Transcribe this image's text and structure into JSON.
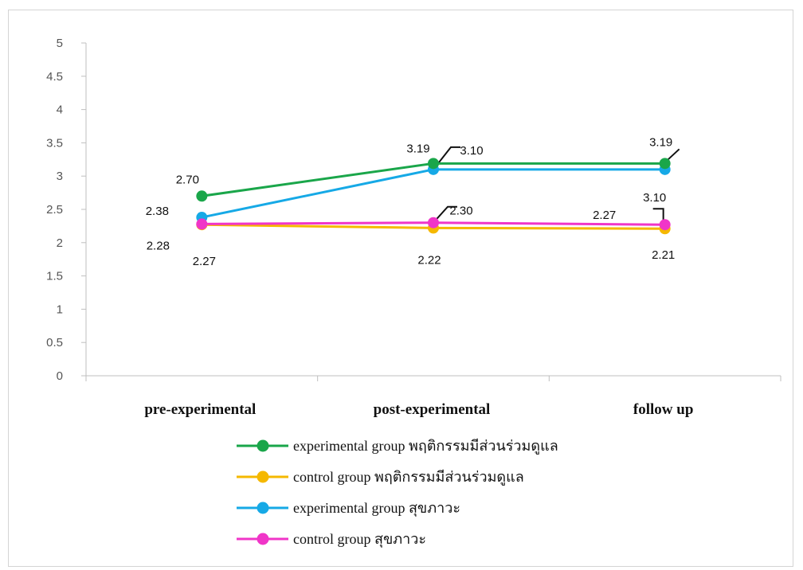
{
  "chart_data": {
    "type": "line",
    "categories": [
      "pre-experimental",
      "post-experimental",
      "follow up"
    ],
    "ylim": [
      0,
      5
    ],
    "yticks": [
      "0",
      "0.5",
      "1",
      "1.5",
      "2",
      "2.5",
      "3",
      "3.5",
      "4",
      "4.5",
      "5"
    ],
    "grid": false,
    "legend_position": "bottom",
    "series": [
      {
        "name": "experimental group พฤติกรรมมีส่วนร่วมดูแล",
        "color": "#1aa64a",
        "values": [
          2.7,
          3.19,
          3.19
        ],
        "labels": [
          "2.70",
          "3.19",
          "3.19"
        ]
      },
      {
        "name": "control group พฤติกรรมมีส่วนร่วมดูแล",
        "color": "#f5b800",
        "values": [
          2.27,
          2.22,
          2.21
        ],
        "labels": [
          "2.27",
          "2.22",
          "2.21"
        ]
      },
      {
        "name": "experimental group สุขภาวะ",
        "color": "#16a9e6",
        "values": [
          2.38,
          3.1,
          3.1
        ],
        "labels": [
          "2.38",
          "3.10",
          "3.10"
        ]
      },
      {
        "name": "control group สุขภาวะ",
        "color": "#f035c8",
        "values": [
          2.28,
          2.3,
          2.27
        ],
        "labels": [
          "2.28",
          "2.30",
          "2.27"
        ]
      }
    ]
  }
}
